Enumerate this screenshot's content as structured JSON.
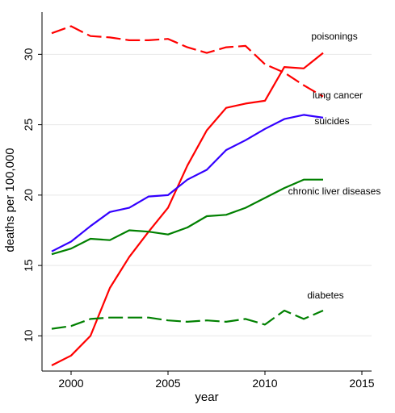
{
  "chart_data": {
    "type": "line",
    "xlabel": "year",
    "ylabel": "deaths per 100,000",
    "xlim": [
      1998.5,
      2015.5
    ],
    "ylim": [
      7.5,
      33
    ],
    "xticks": [
      2000,
      2005,
      2010,
      2015
    ],
    "yticks": [
      10,
      15,
      20,
      25,
      30
    ],
    "grid": "horizontal",
    "series": [
      {
        "name": "poisonings",
        "color": "#ff0000",
        "dash": "solid",
        "x": [
          1999,
          2000,
          2001,
          2002,
          2003,
          2004,
          2005,
          2006,
          2007,
          2008,
          2009,
          2010,
          2011,
          2012,
          2013
        ],
        "values": [
          7.9,
          8.6,
          10.0,
          13.4,
          15.6,
          17.4,
          19.1,
          22.1,
          24.6,
          26.2,
          26.5,
          26.7,
          29.1,
          29.0,
          30.1
        ]
      },
      {
        "name": "lung cancer",
        "color": "#ff0000",
        "dash": "dashed",
        "x": [
          1999,
          2000,
          2001,
          2002,
          2003,
          2004,
          2005,
          2006,
          2007,
          2008,
          2009,
          2010,
          2011,
          2012,
          2013
        ],
        "values": [
          31.5,
          32.0,
          31.3,
          31.2,
          31.0,
          31.0,
          31.1,
          30.5,
          30.1,
          30.5,
          30.6,
          29.3,
          28.7,
          27.8,
          27.0
        ]
      },
      {
        "name": "suicides",
        "color": "#3300ff",
        "dash": "solid",
        "x": [
          1999,
          2000,
          2001,
          2002,
          2003,
          2004,
          2005,
          2006,
          2007,
          2008,
          2009,
          2010,
          2011,
          2012,
          2013
        ],
        "values": [
          16.0,
          16.7,
          17.8,
          18.8,
          19.1,
          19.9,
          20.0,
          21.1,
          21.8,
          23.2,
          23.9,
          24.7,
          25.4,
          25.7,
          25.5
        ]
      },
      {
        "name": "chronic liver diseases",
        "color": "#008000",
        "dash": "solid",
        "x": [
          1999,
          2000,
          2001,
          2002,
          2003,
          2004,
          2005,
          2006,
          2007,
          2008,
          2009,
          2010,
          2011,
          2012,
          2013
        ],
        "values": [
          15.8,
          16.2,
          16.9,
          16.8,
          17.5,
          17.4,
          17.2,
          17.7,
          18.5,
          18.6,
          19.1,
          19.8,
          20.5,
          21.1,
          21.1
        ]
      },
      {
        "name": "diabetes",
        "color": "#008000",
        "dash": "dashed",
        "x": [
          1999,
          2000,
          2001,
          2002,
          2003,
          2004,
          2005,
          2006,
          2007,
          2008,
          2009,
          2010,
          2011,
          2012,
          2013
        ],
        "values": [
          10.5,
          10.7,
          11.2,
          11.3,
          11.3,
          11.3,
          11.1,
          11.0,
          11.1,
          11.0,
          11.2,
          10.8,
          11.8,
          11.2,
          11.8
        ]
      }
    ]
  }
}
